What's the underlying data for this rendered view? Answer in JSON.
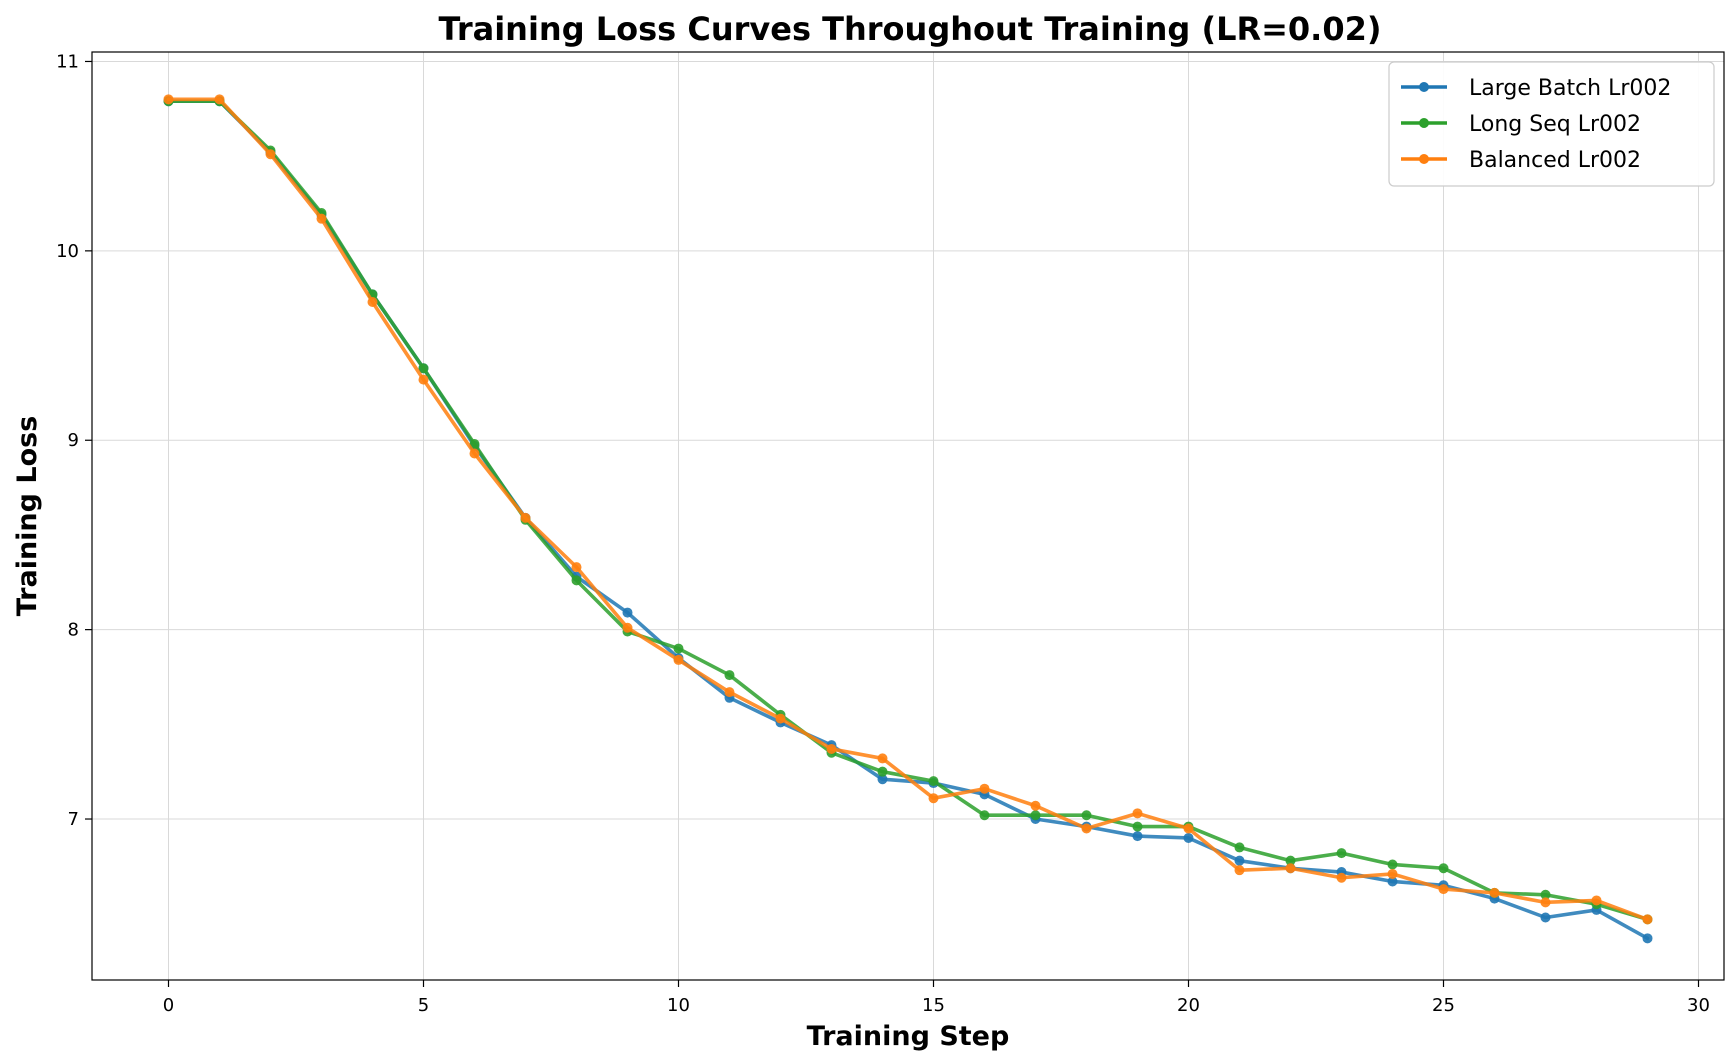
{
  "chart_data": {
    "type": "line",
    "title": "Training Loss Curves Throughout Training (LR=0.02)",
    "xlabel": "Training Step",
    "ylabel": "Training Loss",
    "xlim": [
      -1.5,
      30.5
    ],
    "ylim": [
      6.15,
      11.05
    ],
    "xticks": [
      0,
      5,
      10,
      15,
      20,
      25,
      30
    ],
    "yticks": [
      7,
      8,
      9,
      10,
      11
    ],
    "grid": true,
    "legend_position": "top-right",
    "x": [
      0,
      1,
      2,
      3,
      4,
      5,
      6,
      7,
      8,
      9,
      10,
      11,
      12,
      13,
      14,
      15,
      16,
      17,
      18,
      19,
      20,
      21,
      22,
      23,
      24,
      25,
      26,
      27,
      28,
      29
    ],
    "series": [
      {
        "name": "Large Batch Lr002",
        "color": "#1f77b4",
        "values": [
          10.79,
          10.79,
          10.52,
          10.19,
          9.77,
          9.38,
          8.97,
          8.59,
          8.28,
          8.09,
          7.85,
          7.64,
          7.51,
          7.39,
          7.21,
          7.19,
          7.13,
          7.0,
          6.96,
          6.91,
          6.9,
          6.78,
          6.74,
          6.72,
          6.67,
          6.65,
          6.58,
          6.48,
          6.52,
          6.37
        ]
      },
      {
        "name": "Long Seq Lr002",
        "color": "#2ca02c",
        "values": [
          10.79,
          10.79,
          10.53,
          10.2,
          9.77,
          9.38,
          8.98,
          8.58,
          8.26,
          7.99,
          7.9,
          7.76,
          7.55,
          7.35,
          7.25,
          7.2,
          7.02,
          7.02,
          7.02,
          6.96,
          6.96,
          6.85,
          6.78,
          6.82,
          6.76,
          6.74,
          6.61,
          6.6,
          6.55,
          6.47
        ]
      },
      {
        "name": "Balanced Lr002",
        "color": "#ff7f0e",
        "values": [
          10.8,
          10.8,
          10.51,
          10.17,
          9.73,
          9.32,
          8.93,
          8.59,
          8.33,
          8.01,
          7.84,
          7.67,
          7.53,
          7.37,
          7.32,
          7.11,
          7.16,
          7.07,
          6.95,
          7.03,
          6.95,
          6.73,
          6.74,
          6.69,
          6.71,
          6.63,
          6.61,
          6.56,
          6.57,
          6.47
        ]
      }
    ]
  }
}
